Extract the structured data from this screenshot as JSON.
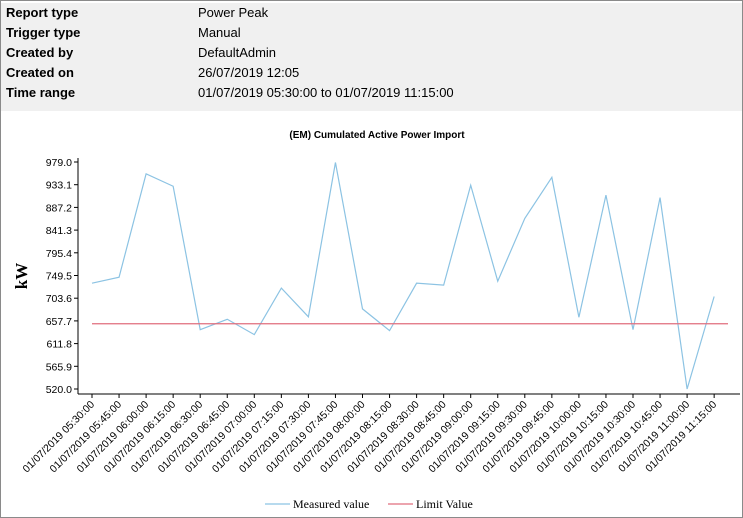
{
  "info": {
    "rows": [
      {
        "key": "Report type",
        "value": "Power Peak"
      },
      {
        "key": "Trigger type",
        "value": "Manual"
      },
      {
        "key": "Created by",
        "value": "DefaultAdmin"
      },
      {
        "key": "Created on",
        "value": "26/07/2019 12:05"
      },
      {
        "key": "Time range",
        "value": "01/07/2019 05:30:00 to 01/07/2019 11:15:00"
      }
    ]
  },
  "colors": {
    "measured": "#8cc3e3",
    "limit": "#e06e7d",
    "axis": "#000000",
    "info_background": "#f0f0f0"
  },
  "chart_data": {
    "type": "line",
    "title": "(EM) Cumulated Active Power Import",
    "xlabel": "",
    "ylabel": "kW",
    "ylim": [
      520.0,
      979.0
    ],
    "yticks": [
      "520.0",
      "565.9",
      "611.8",
      "657.7",
      "703.6",
      "749.5",
      "795.4",
      "841.3",
      "887.2",
      "933.1",
      "979.0"
    ],
    "grid": false,
    "legend_position": "bottom",
    "categories": [
      "01/07/2019 05:30:00",
      "01/07/2019 05:45:00",
      "01/07/2019 06:00:00",
      "01/07/2019 06:15:00",
      "01/07/2019 06:30:00",
      "01/07/2019 06:45:00",
      "01/07/2019 07:00:00",
      "01/07/2019 07:15:00",
      "01/07/2019 07:30:00",
      "01/07/2019 07:45:00",
      "01/07/2019 08:00:00",
      "01/07/2019 08:15:00",
      "01/07/2019 08:30:00",
      "01/07/2019 08:45:00",
      "01/07/2019 09:00:00",
      "01/07/2019 09:15:00",
      "01/07/2019 09:30:00",
      "01/07/2019 09:45:00",
      "01/07/2019 10:00:00",
      "01/07/2019 10:15:00",
      "01/07/2019 10:30:00",
      "01/07/2019 10:45:00",
      "01/07/2019 11:00:00",
      "01/07/2019 11:15:00"
    ],
    "series": [
      {
        "name": "Measured value",
        "values": [
          734,
          746,
          955,
          930,
          640,
          661,
          630,
          724,
          666,
          978,
          682,
          638,
          734,
          730,
          932,
          738,
          865,
          948,
          665,
          912,
          640,
          907,
          520,
          707
        ]
      },
      {
        "name": "Limit Value",
        "values": [
          652,
          652,
          652,
          652,
          652,
          652,
          652,
          652,
          652,
          652,
          652,
          652,
          652,
          652,
          652,
          652,
          652,
          652,
          652,
          652,
          652,
          652,
          652,
          652
        ]
      }
    ]
  }
}
